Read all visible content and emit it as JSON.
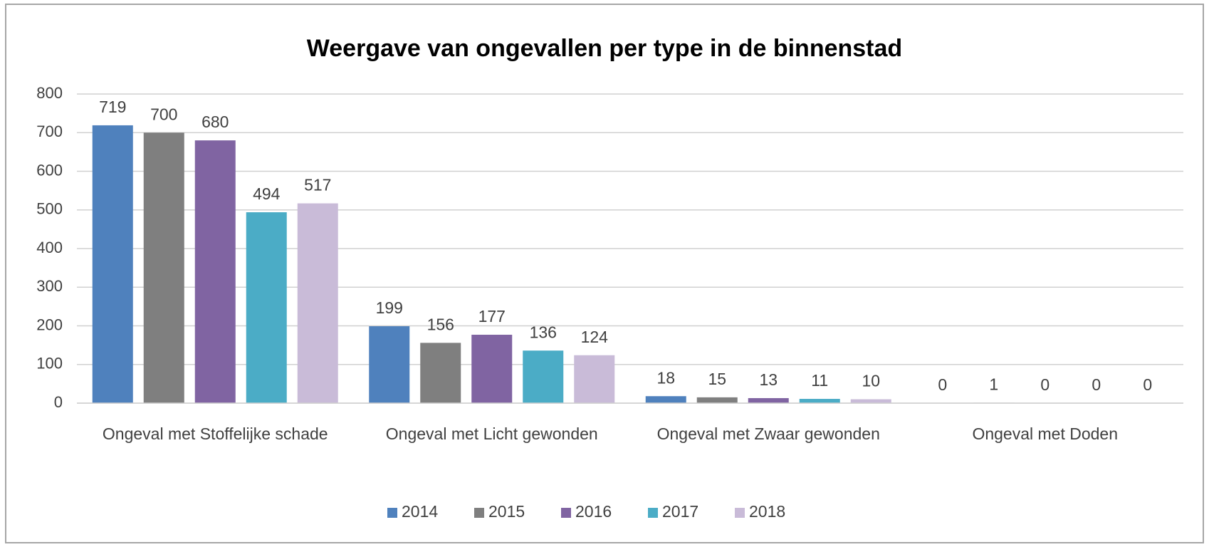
{
  "chart_data": {
    "type": "bar",
    "title": "Weergave van ongevallen per type in de binnenstad",
    "categories": [
      "Ongeval met Stoffelijke schade",
      "Ongeval met Licht gewonden",
      "Ongeval met Zwaar gewonden",
      "Ongeval met Doden"
    ],
    "series": [
      {
        "name": "2014",
        "color": "#4f81bd",
        "values": [
          719,
          199,
          18,
          0
        ]
      },
      {
        "name": "2015",
        "color": "#7f7f7f",
        "values": [
          700,
          156,
          15,
          1
        ]
      },
      {
        "name": "2016",
        "color": "#8064a2",
        "values": [
          680,
          177,
          13,
          0
        ]
      },
      {
        "name": "2017",
        "color": "#4bacc6",
        "values": [
          494,
          136,
          11,
          0
        ]
      },
      {
        "name": "2018",
        "color": "#c9bbd8",
        "values": [
          517,
          124,
          10,
          0
        ]
      }
    ],
    "ylim": [
      0,
      800
    ],
    "yticks": [
      0,
      100,
      200,
      300,
      400,
      500,
      600,
      700,
      800
    ],
    "grid": true,
    "legend": "bottom"
  }
}
